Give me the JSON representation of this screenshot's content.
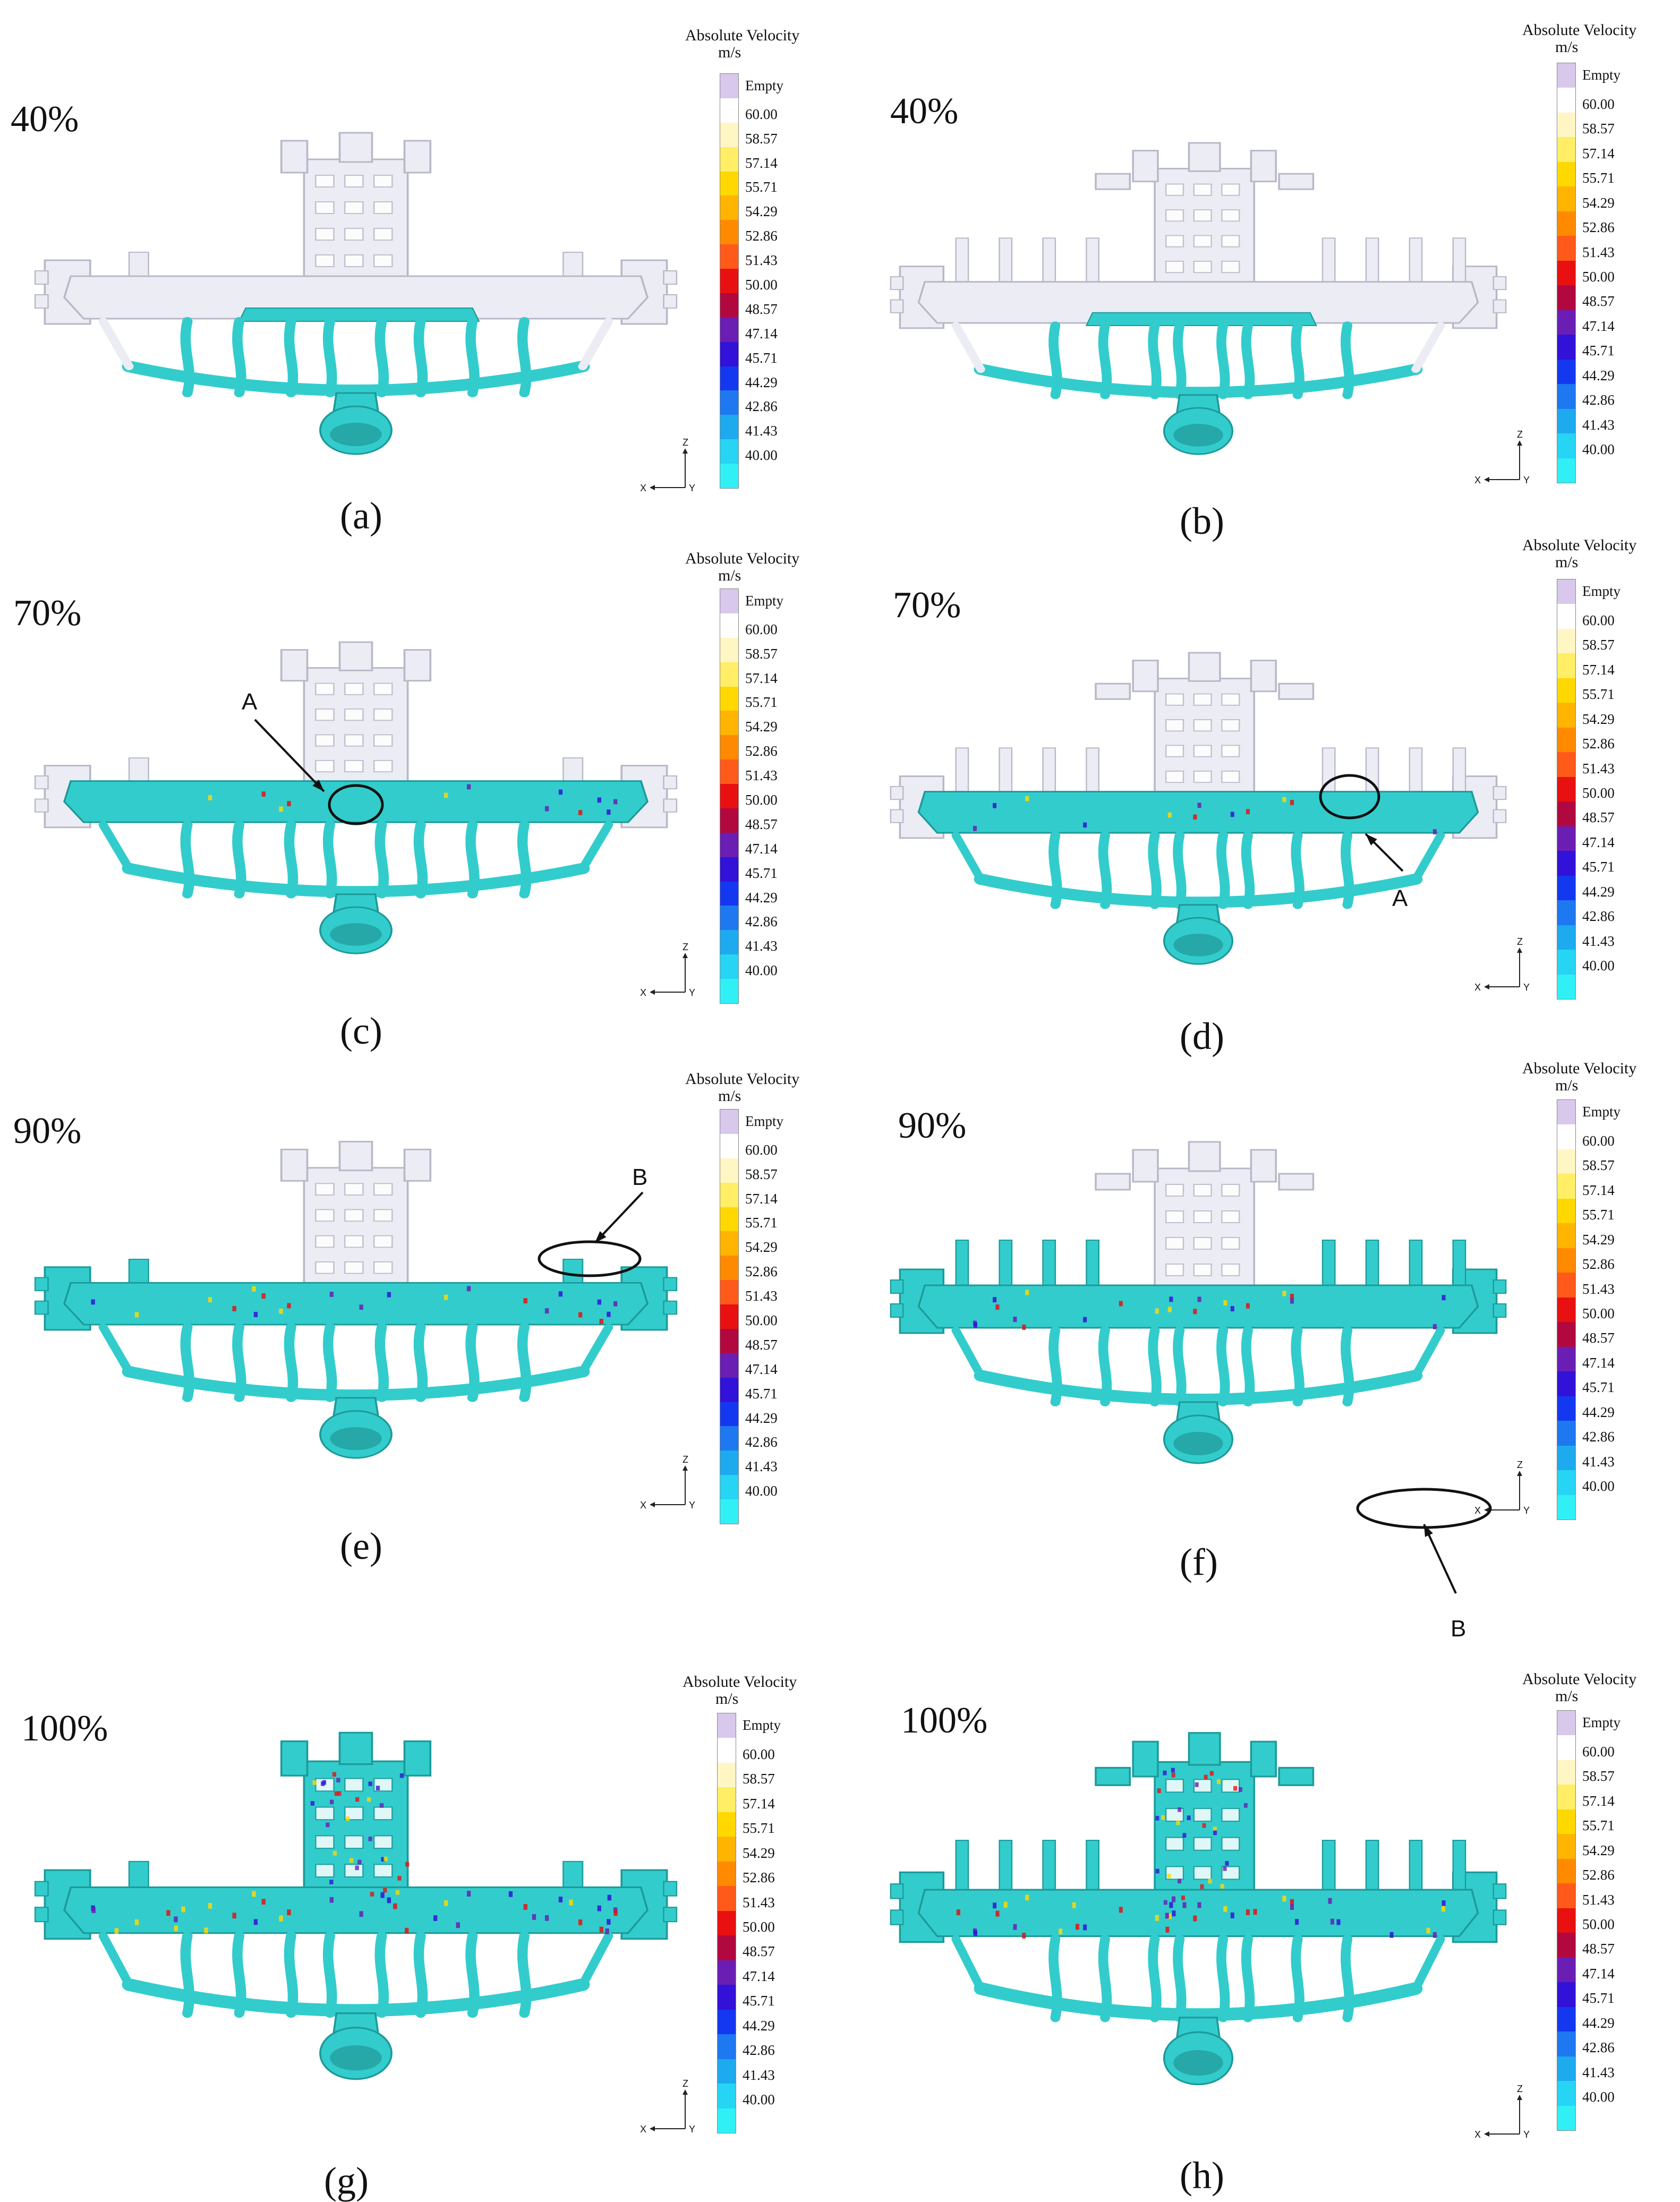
{
  "legend": {
    "title": "Absolute Velocity",
    "unit": "m/s",
    "entries": [
      "Empty",
      "60.00",
      "58.57",
      "57.14",
      "55.71",
      "54.29",
      "52.86",
      "51.43",
      "50.00",
      "48.57",
      "47.14",
      "45.71",
      "44.29",
      "42.86",
      "41.43",
      "40.00"
    ],
    "colors": [
      "#d8c8ec",
      "#ffffff",
      "#fff6c4",
      "#ffee66",
      "#ffd800",
      "#ffb400",
      "#ff8a00",
      "#ff5a1a",
      "#e81010",
      "#b20840",
      "#6a1eb4",
      "#3212d8",
      "#1438f0",
      "#1e78f0",
      "#1eaaee",
      "#26d4f4",
      "#30f0f6"
    ],
    "fluid_color": "#33cccc",
    "empty_color": "#ececf4"
  },
  "axis_labels": {
    "z": "Z",
    "x": "X",
    "y": "Y"
  },
  "panels": [
    {
      "id": "a",
      "caption": "(a)",
      "percent": "40%",
      "fill_fraction": 0.4
    },
    {
      "id": "b",
      "caption": "(b)",
      "percent": "40%",
      "fill_fraction": 0.4
    },
    {
      "id": "c",
      "caption": "(c)",
      "percent": "70%",
      "fill_fraction": 0.7,
      "annotation": "A"
    },
    {
      "id": "d",
      "caption": "(d)",
      "percent": "70%",
      "fill_fraction": 0.7,
      "annotation": "A"
    },
    {
      "id": "e",
      "caption": "(e)",
      "percent": "90%",
      "fill_fraction": 0.9,
      "annotation": "B"
    },
    {
      "id": "f",
      "caption": "(f)",
      "percent": "90%",
      "fill_fraction": 0.9,
      "annotation": "B"
    },
    {
      "id": "g",
      "caption": "(g)",
      "percent": "100%",
      "fill_fraction": 1.0
    },
    {
      "id": "h",
      "caption": "(h)",
      "percent": "100%",
      "fill_fraction": 1.0
    }
  ]
}
